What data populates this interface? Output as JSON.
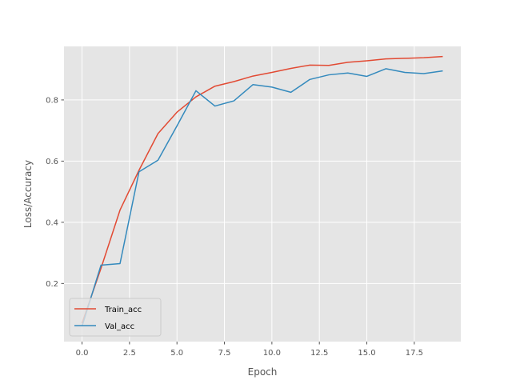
{
  "chart_data": {
    "type": "line",
    "title": "",
    "xlabel": "Epoch",
    "ylabel": "Loss/Accuracy",
    "xlim": [
      -0.95,
      19.95
    ],
    "ylim": [
      0.01,
      0.975
    ],
    "xticks": [
      0.0,
      2.5,
      5.0,
      7.5,
      10.0,
      12.5,
      15.0,
      17.5
    ],
    "xtick_labels": [
      "0.0",
      "2.5",
      "5.0",
      "7.5",
      "10.0",
      "12.5",
      "15.0",
      "17.5"
    ],
    "yticks": [
      0.2,
      0.4,
      0.6,
      0.8
    ],
    "ytick_labels": [
      "0.2",
      "0.4",
      "0.6",
      "0.8"
    ],
    "grid": true,
    "legend_position": "lower-left",
    "x": [
      0,
      1,
      2,
      3,
      4,
      5,
      6,
      7,
      8,
      9,
      10,
      11,
      12,
      13,
      14,
      15,
      16,
      17,
      18,
      19
    ],
    "series": [
      {
        "name": "Train_acc",
        "color": "#E24A33",
        "values": [
          0.07,
          0.25,
          0.44,
          0.57,
          0.69,
          0.76,
          0.81,
          0.845,
          0.86,
          0.878,
          0.89,
          0.903,
          0.914,
          0.913,
          0.923,
          0.928,
          0.934,
          0.936,
          0.938,
          0.942
        ]
      },
      {
        "name": "Val_acc",
        "color": "#348ABD",
        "values": [
          0.06,
          0.26,
          0.265,
          0.565,
          0.603,
          0.715,
          0.83,
          0.78,
          0.797,
          0.85,
          0.842,
          0.825,
          0.867,
          0.882,
          0.888,
          0.877,
          0.902,
          0.89,
          0.886,
          0.895
        ]
      }
    ]
  }
}
